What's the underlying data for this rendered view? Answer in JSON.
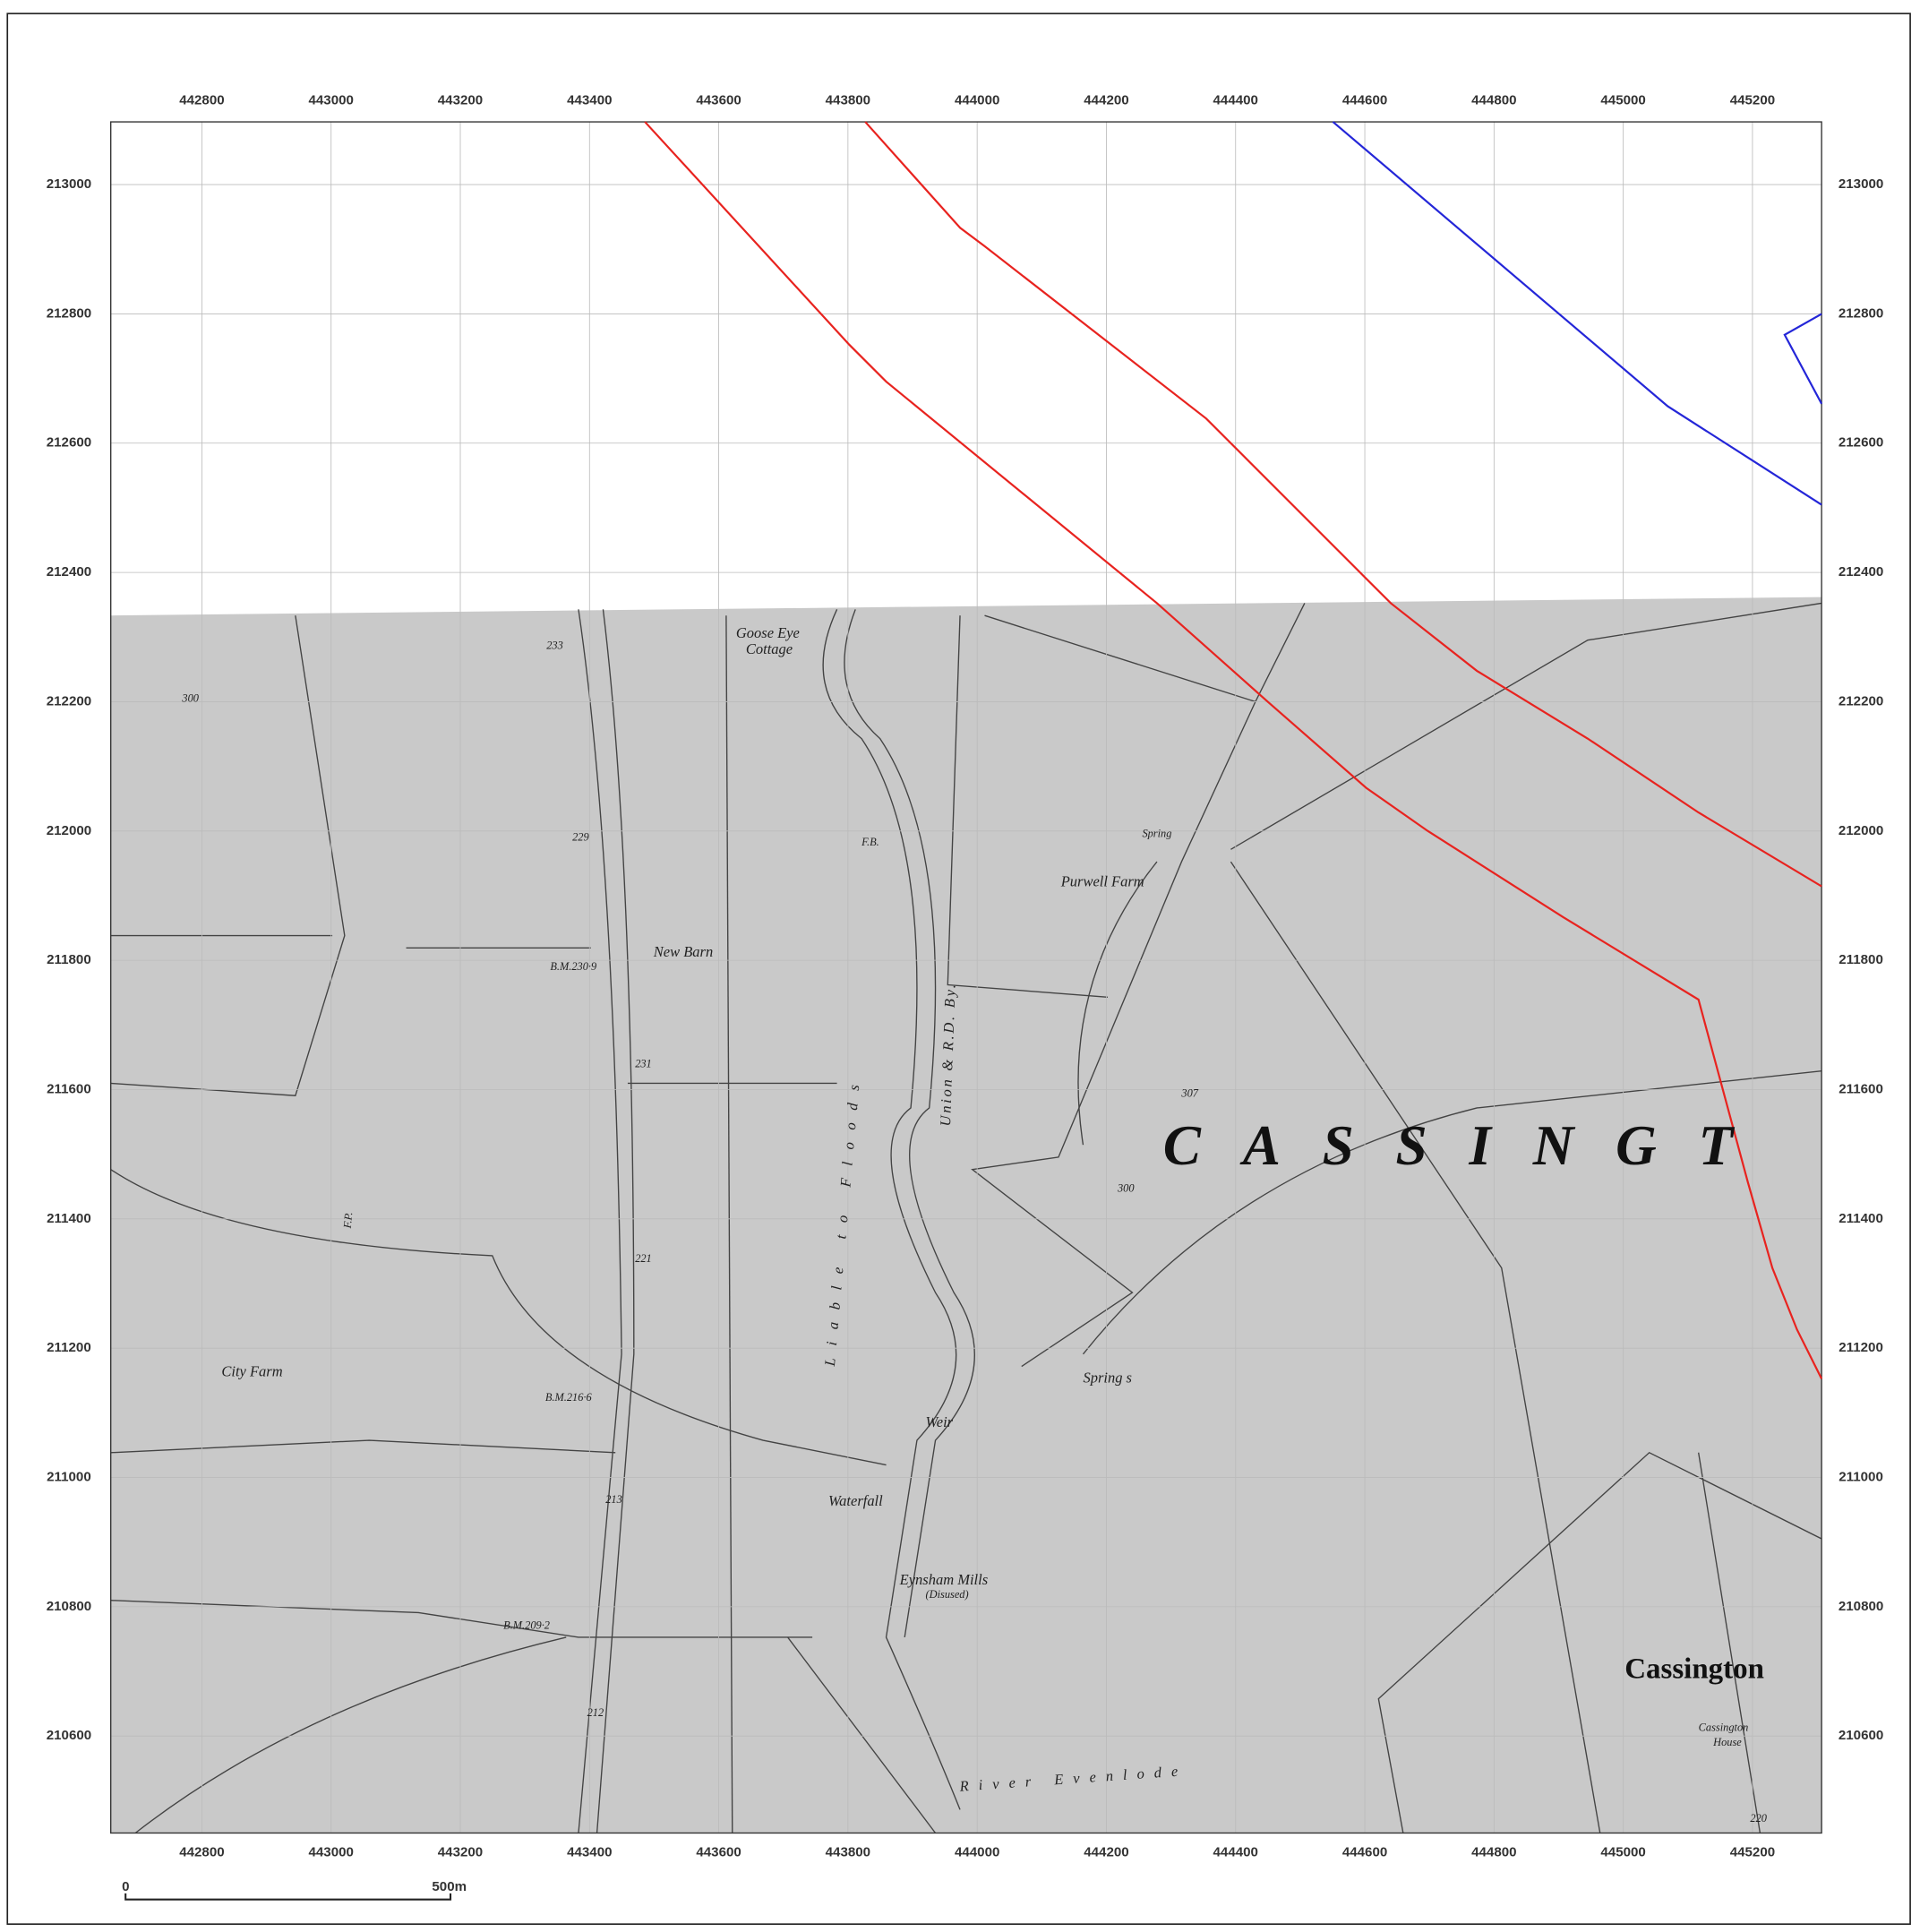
{
  "map": {
    "xlim": [
      442659,
      445307
    ],
    "ylim": [
      210450,
      213097
    ],
    "xticks": [
      442800,
      443000,
      443200,
      443400,
      443600,
      443800,
      444000,
      444200,
      444400,
      444600,
      444800,
      445000,
      445200
    ],
    "yticks": [
      213000,
      212800,
      212600,
      212400,
      212200,
      212000,
      211800,
      211600,
      211400,
      211200,
      211000,
      210800,
      210600
    ],
    "scale_bar": {
      "start": "0",
      "end": "500m"
    },
    "labels": {
      "goose_eye": "Goose Eye",
      "cottage": "Cottage",
      "new_barn": "New Barn",
      "purwell_farm": "Purwell Farm",
      "spring": "Spring",
      "city_farm": "City Farm",
      "springs": "Spring s",
      "weir": "Weir",
      "waterfall": "Waterfall",
      "eynsham_mills": "Eynsham Mills",
      "disused": "(Disused)",
      "cassington": "Cassington",
      "cassington_house_1": "Cassington",
      "cassington_house_2": "House",
      "river": "River Evenlode",
      "parish": "CASSINGT",
      "floods": "Liable to Floods",
      "union": "Union & R.D. By.",
      "fb": "F.B.",
      "fp": "F.P."
    },
    "heights": [
      "233",
      "229",
      "B.M.230·9",
      "231",
      "221",
      "B.M.216·6",
      "213",
      "B.M.209·2",
      "212",
      "300",
      "300",
      "307",
      "220"
    ]
  }
}
